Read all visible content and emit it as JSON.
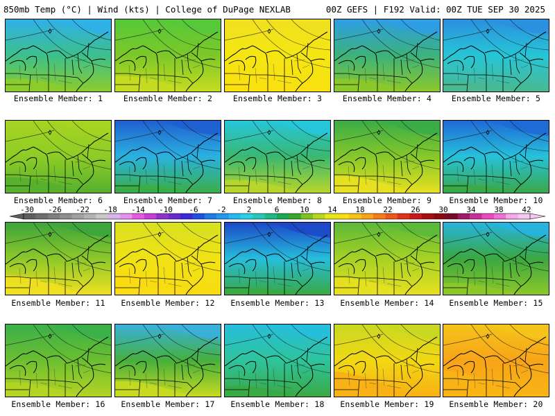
{
  "header": {
    "left_title": "850mb Temp (°C) | Wind (kts) | College of DuPage NEXLAB",
    "right_title": "00Z GEFS | F192 Valid: 00Z TUE SEP 30 2025"
  },
  "caption_prefix": "Ensemble Member:",
  "members": [
    {
      "label": "Ensemble Member: 1",
      "north": "#2fb0e8",
      "mid": "#3cc08c",
      "south": "#8ccc2c",
      "warm": 0.45
    },
    {
      "label": "Ensemble Member: 2",
      "north": "#56c83a",
      "mid": "#7cc828",
      "south": "#c6dc20",
      "warm": 0.55
    },
    {
      "label": "Ensemble Member: 3",
      "north": "#f0e020",
      "mid": "#f5e612",
      "south": "#f8e010",
      "warm": 0.85
    },
    {
      "label": "Ensemble Member: 4",
      "north": "#2e9ee6",
      "mid": "#3cb27a",
      "south": "#8cc82a",
      "warm": 0.45
    },
    {
      "label": "Ensemble Member: 5",
      "north": "#2a8fe0",
      "mid": "#26c6d6",
      "south": "#4ab890",
      "warm": 0.3
    },
    {
      "label": "Ensemble Member: 6",
      "north": "#a6d422",
      "mid": "#8ecc26",
      "south": "#56b02e",
      "warm": 0.55
    },
    {
      "label": "Ensemble Member: 7",
      "north": "#1f5fd0",
      "mid": "#2ab2e0",
      "south": "#3aae46",
      "warm": 0.25
    },
    {
      "label": "Ensemble Member: 8",
      "north": "#26c6dc",
      "mid": "#3ab870",
      "south": "#b8d62a",
      "warm": 0.45
    },
    {
      "label": "Ensemble Member: 9",
      "north": "#3aac46",
      "mid": "#86c82a",
      "south": "#e8e020",
      "warm": 0.6
    },
    {
      "label": "Ensemble Member: 10",
      "north": "#1f6ad6",
      "mid": "#26c2da",
      "south": "#3aa848",
      "warm": 0.25
    },
    {
      "label": "Ensemble Member: 11",
      "north": "#3ca43c",
      "mid": "#8cc82a",
      "south": "#f0e020",
      "warm": 0.7
    },
    {
      "label": "Ensemble Member: 12",
      "north": "#d8e020",
      "mid": "#f0e214",
      "south": "#f8dc12",
      "warm": 0.85
    },
    {
      "label": "Ensemble Member: 13",
      "north": "#1c48c8",
      "mid": "#26bedc",
      "south": "#3aa842",
      "warm": 0.2
    },
    {
      "label": "Ensemble Member: 14",
      "north": "#5ab83a",
      "mid": "#a6d224",
      "south": "#e6e020",
      "warm": 0.6
    },
    {
      "label": "Ensemble Member: 15",
      "north": "#26b4e0",
      "mid": "#3aa840",
      "south": "#8cc82a",
      "warm": 0.4
    },
    {
      "label": "Ensemble Member: 16",
      "north": "#3ab04a",
      "mid": "#6cbe30",
      "south": "#b4d424",
      "warm": 0.5
    },
    {
      "label": "Ensemble Member: 17",
      "north": "#38b0dc",
      "mid": "#46b03c",
      "south": "#c8da20",
      "warm": 0.55
    },
    {
      "label": "Ensemble Member: 18",
      "north": "#26bedc",
      "mid": "#2ec49c",
      "south": "#3aa844",
      "warm": 0.35
    },
    {
      "label": "Ensemble Member: 19",
      "north": "#c8d822",
      "mid": "#f2d812",
      "south": "#f8b014",
      "warm": 0.9
    },
    {
      "label": "Ensemble Member: 20",
      "north": "#f4c41a",
      "mid": "#f8a418",
      "south": "#f8b414",
      "warm": 0.95
    }
  ],
  "colorbar": {
    "tick_labels": [
      "-30",
      "-26",
      "-22",
      "-18",
      "-14",
      "-10",
      "-6",
      "-2",
      "2",
      "6",
      "10",
      "14",
      "18",
      "22",
      "26",
      "30",
      "34",
      "38",
      "42"
    ],
    "colors": [
      "#5e5e5e",
      "#6e6e6e",
      "#7e7e7e",
      "#8e8e8e",
      "#a0a0a0",
      "#b4b4b4",
      "#c8c8c8",
      "#d8b4ec",
      "#e890ee",
      "#e858e4",
      "#c83cd8",
      "#9030c8",
      "#6a2ad0",
      "#3c28d8",
      "#2050e0",
      "#1e7ae6",
      "#2298ee",
      "#26b8f0",
      "#2ad0e6",
      "#28c8b8",
      "#20b888",
      "#1aa850",
      "#3aa828",
      "#7ec420",
      "#b8d81c",
      "#e6ea14",
      "#f8e010",
      "#f8c412",
      "#f8a416",
      "#f67c18",
      "#ee561c",
      "#e2301c",
      "#c81818",
      "#a80e14",
      "#8a0a10",
      "#780a28",
      "#a01868",
      "#c83098",
      "#e848c0",
      "#f070d8",
      "#f6a8ec",
      "#f4c8f2"
    ]
  }
}
